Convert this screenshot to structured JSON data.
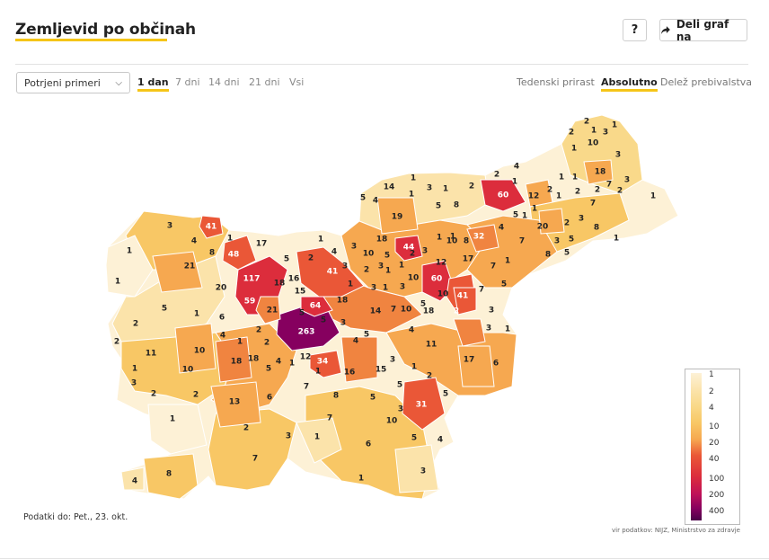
{
  "header": {
    "title": "Zemljevid po občinah",
    "help_label": "?",
    "share_label": "Deli graf na",
    "share_icon": "share-arrow-icon"
  },
  "filters": {
    "dataset_selected": "Potrjeni primeri",
    "range_tabs": [
      {
        "label": "1 dan",
        "active": true
      },
      {
        "label": "7 dni",
        "active": false
      },
      {
        "label": "14 dni",
        "active": false
      },
      {
        "label": "21 dni",
        "active": false
      },
      {
        "label": "Vsi",
        "active": false
      }
    ],
    "mode_tabs": [
      {
        "label": "Tedenski prirast",
        "active": false
      },
      {
        "label": "Absolutno",
        "active": true
      },
      {
        "label": "Delež prebivalstva",
        "active": false
      }
    ]
  },
  "map": {
    "region": "Slovenija - občine",
    "labels": [
      "1",
      "1",
      "1",
      "2",
      "2",
      "2",
      "3",
      "3",
      "4",
      "4",
      "5",
      "5",
      "6",
      "7",
      "8",
      "8",
      "10",
      "10",
      "11",
      "12",
      "13",
      "14",
      "15",
      "16",
      "17",
      "18",
      "19",
      "20",
      "21",
      "31",
      "32",
      "34",
      "41",
      "44",
      "48",
      "59",
      "60",
      "64",
      "117",
      "263"
    ],
    "legend_ticks": [
      "1",
      "2",
      "4",
      "10",
      "20",
      "40",
      "100",
      "200",
      "400"
    ],
    "colors": {
      "c1": "#fdf1d6",
      "c2": "#fbe3aa",
      "c3": "#f9d98a",
      "c4": "#f8c765",
      "c5": "#f6a850",
      "c6": "#f08440",
      "c7": "#ea5737",
      "c8": "#dc2d3c",
      "c9": "#bf1158",
      "c10": "#86005f",
      "c11": "#4a0048"
    }
  },
  "footer": {
    "date": "Podatki do: Pet., 23. okt.",
    "source": "vir podatkov: NIJZ, Ministrstvo za zdravje"
  }
}
